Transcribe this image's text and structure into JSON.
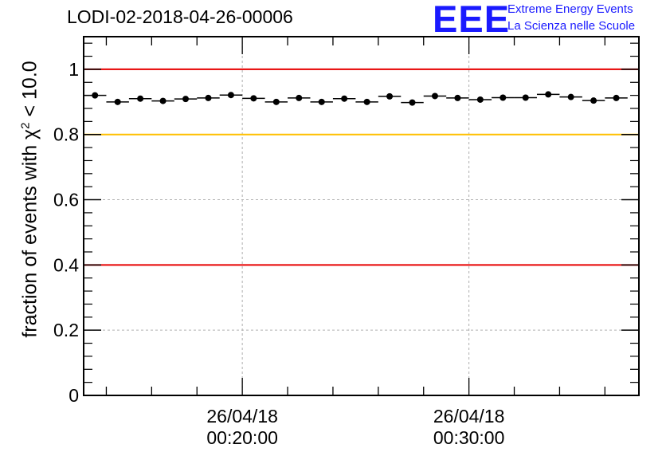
{
  "title": "LODI-02-2018-04-26-00006",
  "logo": {
    "text": "EEE",
    "line1": "Extreme Energy Events",
    "line2": "La Scienza nelle Scuole",
    "color": "#1a1aff"
  },
  "chart_data": {
    "type": "scatter",
    "title": "LODI-02-2018-04-26-00006",
    "xlabel": "",
    "ylabel_main": "fraction of events with χ",
    "ylabel_sup": "2",
    "ylabel_tail": " < 10.0",
    "ylim": [
      0,
      1.1
    ],
    "yticks": [
      "0",
      "0.2",
      "0.4",
      "0.6",
      "0.8",
      "1"
    ],
    "xticks": [
      {
        "line1": "26/04/18",
        "line2": "00:20:00"
      },
      {
        "line1": "26/04/18",
        "line2": "00:30:00"
      }
    ],
    "x_range_minutes": [
      13.0,
      37.5
    ],
    "bin_width_minutes": 1.0,
    "x_minutes": [
      13.5,
      14.5,
      15.5,
      16.5,
      17.5,
      18.5,
      19.5,
      20.5,
      21.5,
      22.5,
      23.5,
      24.5,
      25.5,
      26.5,
      27.5,
      28.5,
      29.5,
      30.5,
      31.5,
      32.5,
      33.5,
      34.5,
      35.5,
      36.5
    ],
    "values": [
      0.92,
      0.9,
      0.91,
      0.903,
      0.909,
      0.912,
      0.921,
      0.911,
      0.9,
      0.912,
      0.9,
      0.91,
      0.9,
      0.917,
      0.898,
      0.918,
      0.912,
      0.907,
      0.913,
      0.913,
      0.923,
      0.915,
      0.904,
      0.912
    ],
    "reference_lines": [
      {
        "y": 1.0,
        "color": "#e60000"
      },
      {
        "y": 0.8,
        "color": "#ffc000"
      },
      {
        "y": 0.4,
        "color": "#e60000"
      }
    ],
    "grid": true,
    "marker_color": "#000000"
  }
}
